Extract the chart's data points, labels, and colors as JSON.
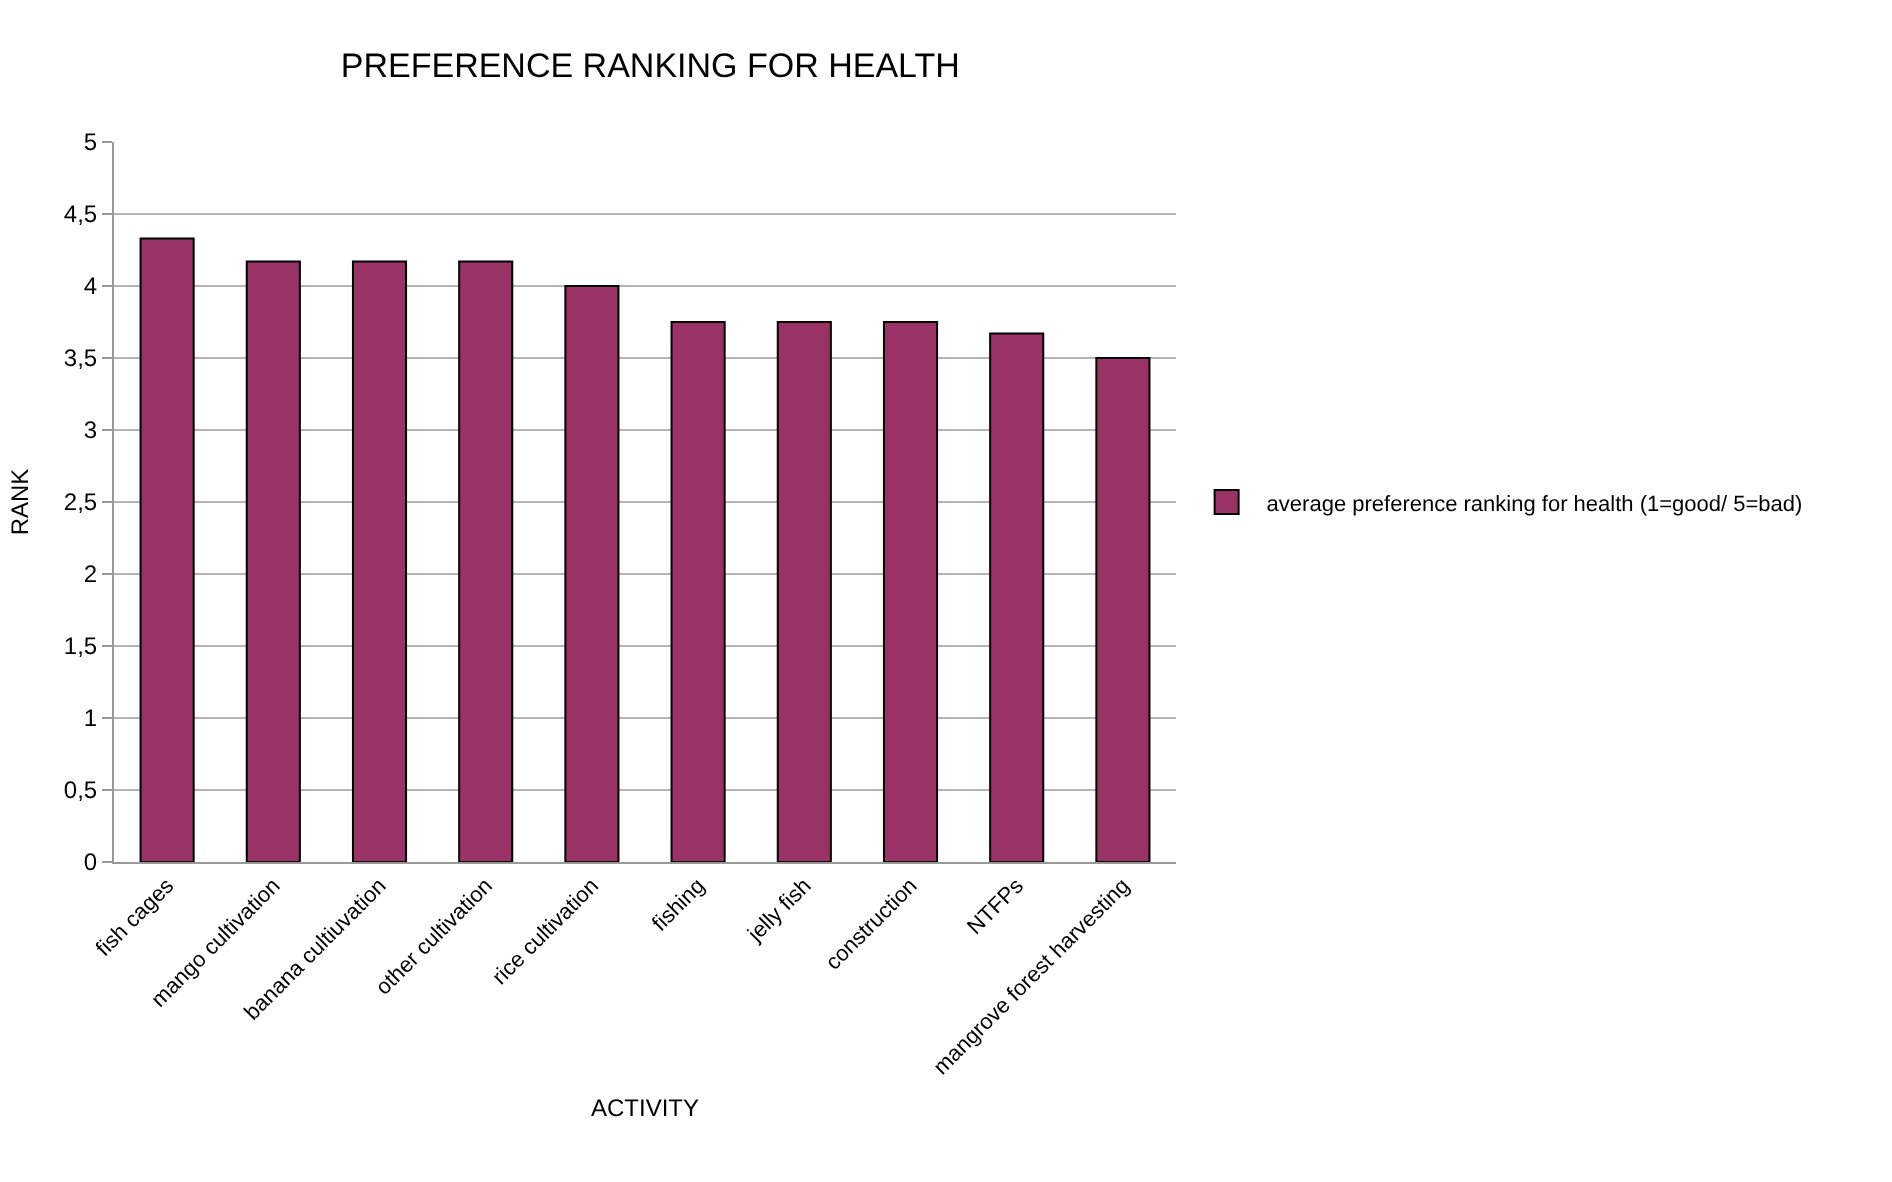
{
  "chart_data": {
    "type": "bar",
    "title": "PREFERENCE RANKING FOR HEALTH",
    "xlabel": "ACTIVITY",
    "ylabel": "RANK",
    "categories": [
      "fish cages",
      "mango cultivation",
      "banana cultiuvation",
      "other cultivation",
      "rice cultivation",
      "fishing",
      "jelly fish",
      "construction",
      "NTFPs",
      "mangrove forest harvesting"
    ],
    "series": [
      {
        "name": "average preference ranking for health (1=good/ 5=bad)",
        "color": "#993366",
        "values": [
          4.33,
          4.17,
          4.17,
          4.17,
          4.0,
          3.75,
          3.75,
          3.75,
          3.67,
          3.5
        ]
      }
    ],
    "ylim": [
      0,
      5
    ],
    "yticks": [
      0,
      {
        "value": 0.5,
        "label": "0,5"
      },
      1,
      {
        "value": 1.5,
        "label": "1,5"
      },
      2,
      {
        "value": 2.5,
        "label": "2,5"
      },
      3,
      {
        "value": 3.5,
        "label": "3,5"
      },
      4,
      {
        "value": 4.5,
        "label": "4,5"
      },
      5
    ],
    "grid": "y",
    "legend": "right"
  }
}
